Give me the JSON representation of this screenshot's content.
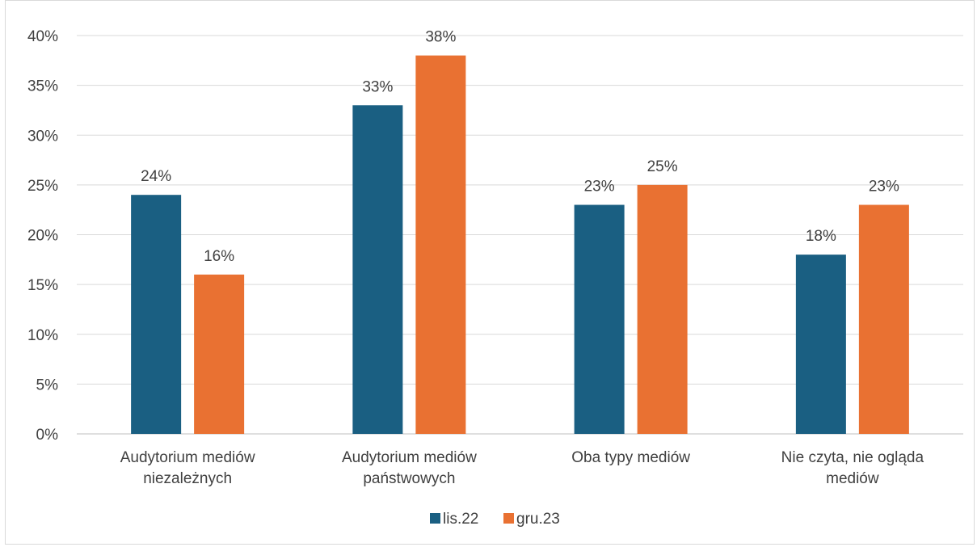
{
  "chart_data": {
    "type": "bar",
    "categories": [
      [
        "Audytorium mediów",
        "niezależnych"
      ],
      [
        "Audytorium mediów",
        "państwowych"
      ],
      [
        "Oba typy mediów"
      ],
      [
        "Nie czyta, nie ogląda",
        "mediów"
      ]
    ],
    "series": [
      {
        "name": "lis.22",
        "color": "#1a5f82",
        "values": [
          24,
          33,
          23,
          18
        ]
      },
      {
        "name": "gru.23",
        "color": "#e97132",
        "values": [
          16,
          38,
          25,
          23
        ]
      }
    ],
    "value_suffix": "%",
    "ylim": [
      0,
      40
    ],
    "yticks": [
      0,
      5,
      10,
      15,
      20,
      25,
      30,
      35,
      40
    ],
    "grid": true,
    "legend_position": "bottom"
  }
}
